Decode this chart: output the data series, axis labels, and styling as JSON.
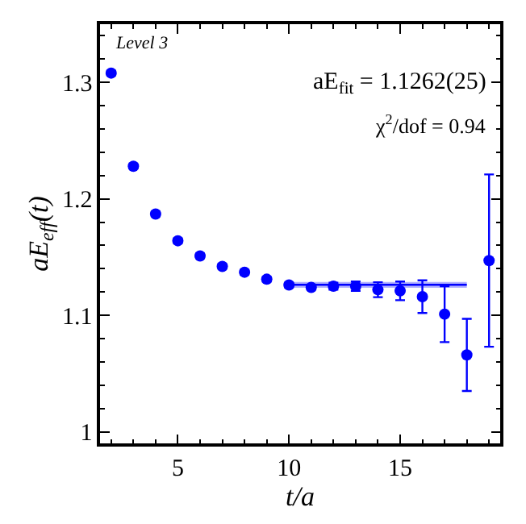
{
  "chart_data": {
    "type": "scatter",
    "xlabel": "t/a",
    "ylabel": "aE$_{eff}$(t)",
    "x": [
      2,
      3,
      4,
      5,
      6,
      7,
      8,
      9,
      10,
      11,
      12,
      13,
      14,
      15,
      16,
      17,
      18,
      19
    ],
    "series": [
      {
        "color": "#0000ff",
        "marker": "circle",
        "values": [
          1.308,
          1.228,
          1.187,
          1.164,
          1.151,
          1.142,
          1.137,
          1.131,
          1.126,
          1.124,
          1.125,
          1.125,
          1.122,
          1.121,
          1.116,
          1.101,
          1.066,
          1.147
        ],
        "errors": [
          0.002,
          0.002,
          0.002,
          0.002,
          0.002,
          0.002,
          0.002,
          0.002,
          0.002,
          0.002,
          0.003,
          0.004,
          0.0064,
          0.008,
          0.014,
          0.024,
          0.031,
          0.074
        ]
      },
      {
        "type": "line",
        "color": "#0000ff",
        "x": [
          10,
          18
        ],
        "values": [
          1.1262,
          1.1262
        ],
        "lower": [
          1.1237,
          1.1237
        ],
        "upper": [
          1.1287,
          1.1287
        ]
      }
    ],
    "xlim": [
      1.5,
      19.5
    ],
    "xticks": [
      5,
      10,
      15
    ],
    "ylim": [
      0.99,
      1.35
    ],
    "yticks": [
      {
        "value": 1,
        "label": "1"
      },
      1.1,
      1.2,
      1.3
    ],
    "annotations": [
      "Level 3",
      "aE$_{fit}$ = 1.1262(25)",
      "χ$^{2}$/dof = 0.94"
    ]
  }
}
